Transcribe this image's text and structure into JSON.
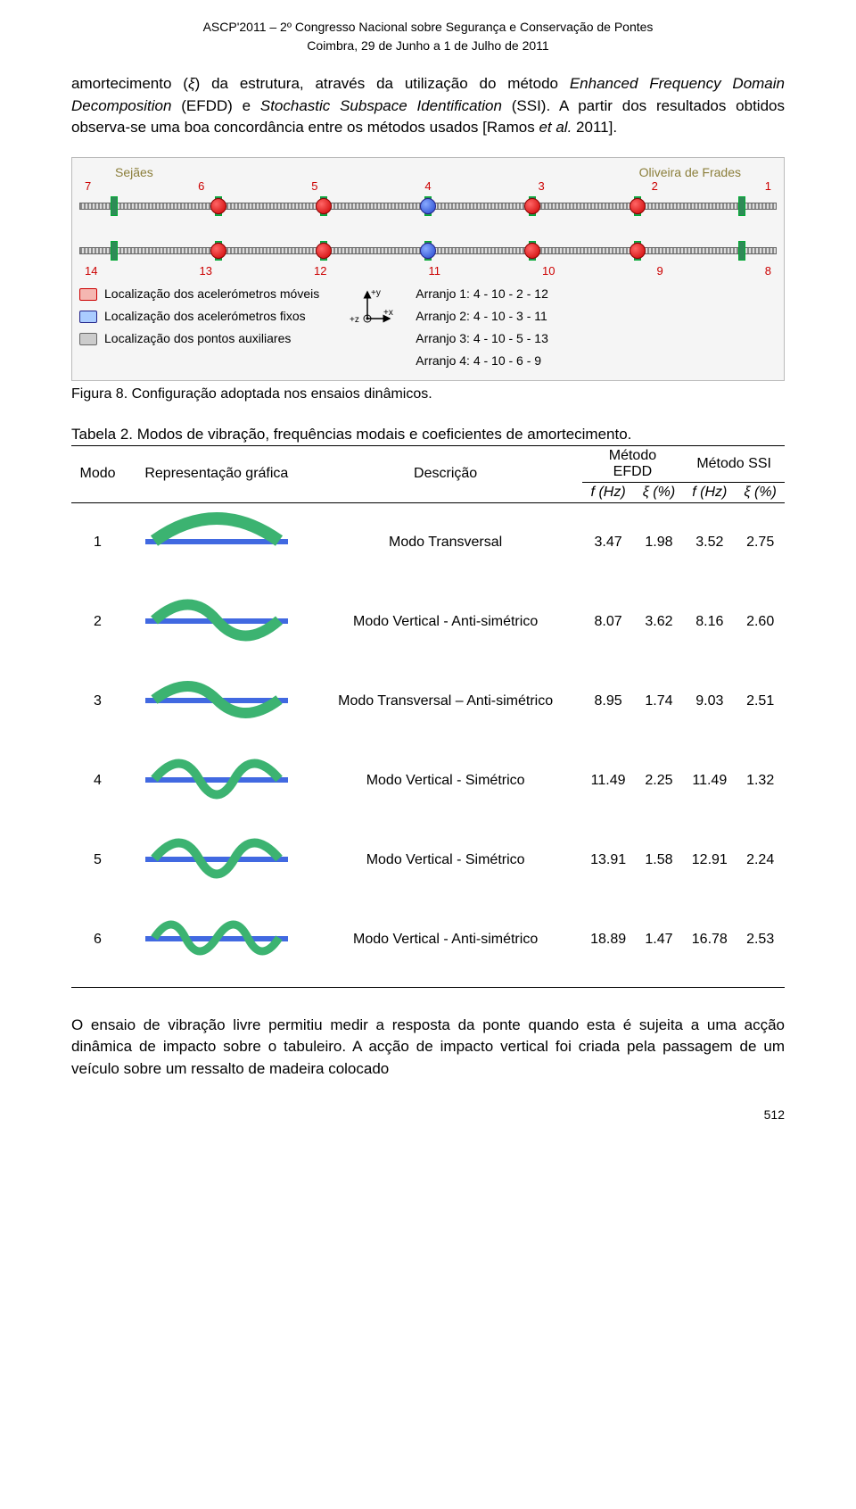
{
  "header": {
    "line1": "ASCP'2011 – 2º Congresso Nacional sobre Segurança e Conservação de Pontes",
    "line2": "Coimbra, 29 de Junho a 1 de Julho de 2011"
  },
  "intro_text": "amortecimento (ξ) da estrutura, através da utilização do método Enhanced Frequency Domain Decomposition (EFDD) e Stochastic Subspace Identification (SSI). A partir dos resultados obtidos observa-se uma boa concordância entre os métodos usados [Ramos et al. 2011].",
  "bridge": {
    "left_label": "Sejães",
    "right_label": "Oliveira de Frades",
    "top_numbers": [
      "7",
      "6",
      "5",
      "4",
      "3",
      "2",
      "1"
    ],
    "bot_numbers": [
      "14",
      "13",
      "12",
      "11",
      "10",
      "9",
      "8"
    ],
    "sensor_positions_pct": [
      5,
      20,
      35,
      50,
      65,
      80,
      95
    ],
    "fixed_idx": [
      3
    ],
    "legend": {
      "moveis": "Localização dos acelerómetros móveis",
      "fixos": "Localização dos acelerómetros fixos",
      "pontos": "Localização dos pontos auxiliares"
    },
    "arranjos": [
      "Arranjo 1: 4 - 10 - 2 - 12",
      "Arranjo 2: 4 - 10 - 3 - 11",
      "Arranjo 3: 4 - 10 - 5 - 13",
      "Arranjo 4: 4 - 10 - 6 - 9"
    ],
    "axis_labels": {
      "x": "+x",
      "y": "+y",
      "z": "+z"
    }
  },
  "fig_caption": "Figura 8. Configuração adoptada nos ensaios dinâmicos.",
  "table": {
    "title": "Tabela 2. Modos de vibração, frequências modais e coeficientes de amortecimento.",
    "columns": {
      "modo": "Modo",
      "repr": "Representação gráfica",
      "descr": "Descrição",
      "efdd_group": "Método EFDD",
      "ssi_group": "Método SSI",
      "fhz": "f (Hz)",
      "xi": "ξ (%)"
    },
    "rows": [
      {
        "modo": "1",
        "descr": "Modo Transversal",
        "efdd_f": "3.47",
        "efdd_x": "1.98",
        "ssi_f": "3.52",
        "ssi_x": "2.75",
        "shape": 1
      },
      {
        "modo": "2",
        "descr": "Modo Vertical - Anti-simétrico",
        "efdd_f": "8.07",
        "efdd_x": "3.62",
        "ssi_f": "8.16",
        "ssi_x": "2.60",
        "shape": 2
      },
      {
        "modo": "3",
        "descr": "Modo Transversal – Anti-simétrico",
        "efdd_f": "8.95",
        "efdd_x": "1.74",
        "ssi_f": "9.03",
        "ssi_x": "2.51",
        "shape": 3
      },
      {
        "modo": "4",
        "descr": "Modo Vertical - Simétrico",
        "efdd_f": "11.49",
        "efdd_x": "2.25",
        "ssi_f": "11.49",
        "ssi_x": "1.32",
        "shape": 4
      },
      {
        "modo": "5",
        "descr": "Modo Vertical - Simétrico",
        "efdd_f": "13.91",
        "efdd_x": "1.58",
        "ssi_f": "12.91",
        "ssi_x": "2.24",
        "shape": 5
      },
      {
        "modo": "6",
        "descr": "Modo Vertical - Anti-simétrico",
        "efdd_f": "18.89",
        "efdd_x": "1.47",
        "ssi_f": "16.78",
        "ssi_x": "2.53",
        "shape": 6
      }
    ],
    "shape_colors": {
      "ribbon": "#3cb371",
      "deck": "#4169e1"
    }
  },
  "conclusion_text": "O ensaio de vibração livre permitiu medir a resposta da ponte quando esta é sujeita a uma acção dinâmica de impacto sobre o tabuleiro. A acção de impacto vertical foi criada pela passagem de um veículo sobre um ressalto de madeira colocado",
  "page_number": "512"
}
